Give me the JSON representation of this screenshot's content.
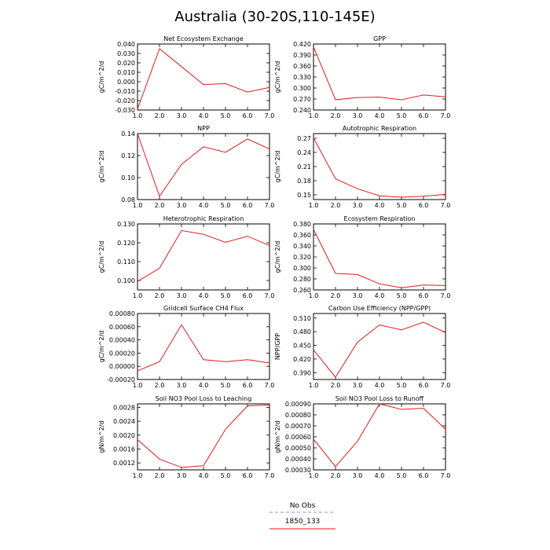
{
  "title": "Australia (30-20S,110-145E)",
  "legend": {
    "entries": [
      {
        "label": "No Obs",
        "color": "#8c8cf0",
        "dashed": true
      },
      {
        "label": "1850_133",
        "color": "#e41a1c",
        "dashed": false
      }
    ]
  },
  "chart_data": [
    {
      "type": "line",
      "title": "Net Ecosystem Exchange",
      "ylabel": "gC/m^2/d",
      "x": [
        1,
        2,
        3,
        4,
        5,
        6,
        7
      ],
      "xticks": [
        "1.0",
        "2.0",
        "3.0",
        "4.0",
        "5.0",
        "6.0",
        "7.0"
      ],
      "xlim": [
        1,
        7
      ],
      "ylim": [
        -0.03,
        0.04
      ],
      "yticks": [
        -0.03,
        -0.02,
        -0.01,
        0.0,
        0.01,
        0.02,
        0.03,
        0.04
      ],
      "yticklabels": [
        "-0.030",
        "-0.020",
        "-0.010",
        "0.000",
        "0.010",
        "0.020",
        "0.030",
        "0.040"
      ],
      "series": [
        {
          "values": [
            -0.029,
            0.035,
            0.016,
            -0.003,
            -0.002,
            -0.011,
            -0.006
          ]
        }
      ]
    },
    {
      "type": "line",
      "title": "GPP",
      "ylabel": "gC/m^2/d",
      "x": [
        1,
        2,
        3,
        4,
        5,
        6,
        7
      ],
      "xticks": [
        "1.0",
        "2.0",
        "3.0",
        "4.0",
        "5.0",
        "6.0",
        "7.0"
      ],
      "xlim": [
        1,
        7
      ],
      "ylim": [
        0.24,
        0.42
      ],
      "yticks": [
        0.24,
        0.27,
        0.3,
        0.33,
        0.36,
        0.39,
        0.42
      ],
      "yticklabels": [
        "0.240",
        "0.270",
        "0.300",
        "0.330",
        "0.360",
        "0.390",
        "0.420"
      ],
      "series": [
        {
          "values": [
            0.412,
            0.268,
            0.274,
            0.275,
            0.268,
            0.281,
            0.276
          ]
        }
      ]
    },
    {
      "type": "line",
      "title": "NPP",
      "ylabel": "gC/m^2/d",
      "x": [
        1,
        2,
        3,
        4,
        5,
        6,
        7
      ],
      "xticks": [
        "1.0",
        "2.0",
        "3.0",
        "4.0",
        "5.0",
        "6.0",
        "7.0"
      ],
      "xlim": [
        1,
        7
      ],
      "ylim": [
        0.08,
        0.14
      ],
      "yticks": [
        0.08,
        0.1,
        0.12,
        0.14
      ],
      "yticklabels": [
        "0.08",
        "0.10",
        "0.12",
        "0.14"
      ],
      "series": [
        {
          "values": [
            0.14,
            0.083,
            0.112,
            0.128,
            0.123,
            0.135,
            0.126
          ]
        }
      ]
    },
    {
      "type": "line",
      "title": "Autotrophic Respiration",
      "ylabel": "gC/m^2/d",
      "x": [
        1,
        2,
        3,
        4,
        5,
        6,
        7
      ],
      "xticks": [
        "1.0",
        "2.0",
        "3.0",
        "4.0",
        "5.0",
        "6.0",
        "7.0"
      ],
      "xlim": [
        1,
        7
      ],
      "ylim": [
        0.14,
        0.28
      ],
      "yticks": [
        0.15,
        0.18,
        0.21,
        0.24,
        0.27
      ],
      "yticklabels": [
        "0.15",
        "0.18",
        "0.21",
        "0.24",
        "0.27"
      ],
      "series": [
        {
          "values": [
            0.271,
            0.184,
            0.163,
            0.148,
            0.145,
            0.147,
            0.151
          ]
        }
      ]
    },
    {
      "type": "line",
      "title": "Heterotrophic Respiration",
      "ylabel": "gC/m^2/d",
      "x": [
        1,
        2,
        3,
        4,
        5,
        6,
        7
      ],
      "xticks": [
        "1.0",
        "2.0",
        "3.0",
        "4.0",
        "5.0",
        "6.0",
        "7.0"
      ],
      "xlim": [
        1,
        7
      ],
      "ylim": [
        0.095,
        0.13
      ],
      "yticks": [
        0.1,
        0.11,
        0.12,
        0.13
      ],
      "yticklabels": [
        "0.100",
        "0.110",
        "0.120",
        "0.130"
      ],
      "series": [
        {
          "values": [
            0.0995,
            0.1065,
            0.1265,
            0.1245,
            0.1202,
            0.1235,
            0.1185
          ]
        }
      ]
    },
    {
      "type": "line",
      "title": "Ecosystem Respiration",
      "ylabel": "gC/m^2/d",
      "x": [
        1,
        2,
        3,
        4,
        5,
        6,
        7
      ],
      "xticks": [
        "1.0",
        "2.0",
        "3.0",
        "4.0",
        "5.0",
        "6.0",
        "7.0"
      ],
      "xlim": [
        1,
        7
      ],
      "ylim": [
        0.26,
        0.38
      ],
      "yticks": [
        0.26,
        0.28,
        0.3,
        0.32,
        0.34,
        0.36,
        0.38
      ],
      "yticklabels": [
        "0.260",
        "0.280",
        "0.300",
        "0.320",
        "0.340",
        "0.360",
        "0.380"
      ],
      "series": [
        {
          "values": [
            0.37,
            0.29,
            0.288,
            0.271,
            0.264,
            0.269,
            0.268
          ]
        }
      ]
    },
    {
      "type": "line",
      "title": "Gridcell Surface CH4 Flux",
      "ylabel": "gC/m^2/d",
      "x": [
        1,
        2,
        3,
        4,
        5,
        6,
        7
      ],
      "xticks": [
        "1.0",
        "2.0",
        "3.0",
        "4.0",
        "5.0",
        "6.0",
        "7.0"
      ],
      "xlim": [
        1,
        7
      ],
      "ylim": [
        -0.0002,
        0.0008
      ],
      "yticks": [
        -0.0002,
        0.0,
        0.0002,
        0.0004,
        0.0006,
        0.0008
      ],
      "yticklabels": [
        "-0.00020",
        "0.00000",
        "0.00020",
        "0.00040",
        "0.00060",
        "0.00080"
      ],
      "series": [
        {
          "values": [
            -7e-05,
            7e-05,
            0.00063,
            0.0001,
            7e-05,
            0.0001,
            5e-05
          ]
        }
      ]
    },
    {
      "type": "line",
      "title": "Carbon Use Efficiency (NPP/GPP)",
      "ylabel": "NPP/GPP",
      "x": [
        1,
        2,
        3,
        4,
        5,
        6,
        7
      ],
      "xticks": [
        "1.0",
        "2.0",
        "3.0",
        "4.0",
        "5.0",
        "6.0",
        "7.0"
      ],
      "xlim": [
        1,
        7
      ],
      "ylim": [
        0.375,
        0.52
      ],
      "yticks": [
        0.39,
        0.42,
        0.45,
        0.48,
        0.51
      ],
      "yticklabels": [
        "0.390",
        "0.420",
        "0.450",
        "0.480",
        "0.510"
      ],
      "series": [
        {
          "values": [
            0.44,
            0.38,
            0.457,
            0.495,
            0.484,
            0.501,
            0.478
          ]
        }
      ]
    },
    {
      "type": "line",
      "title": "Soil NO3 Pool Loss to Leaching",
      "ylabel": "gN/m^2/d",
      "x": [
        1,
        2,
        3,
        4,
        5,
        6,
        7
      ],
      "xticks": [
        "1.0",
        "2.0",
        "3.0",
        "4.0",
        "5.0",
        "6.0",
        "7.0"
      ],
      "xlim": [
        1,
        7
      ],
      "ylim": [
        0.001,
        0.0029
      ],
      "yticks": [
        0.0012,
        0.0016,
        0.002,
        0.0024,
        0.0028
      ],
      "yticklabels": [
        "0.0012",
        "0.0016",
        "0.0020",
        "0.0024",
        "0.0028"
      ],
      "series": [
        {
          "values": [
            0.00187,
            0.00131,
            0.00107,
            0.00112,
            0.00217,
            0.00284,
            0.00287
          ]
        }
      ]
    },
    {
      "type": "line",
      "title": "Soil NO3 Pool Loss to Runoff",
      "ylabel": "gN/m^2/d",
      "x": [
        1,
        2,
        3,
        4,
        5,
        6,
        7
      ],
      "xticks": [
        "1.0",
        "2.0",
        "3.0",
        "4.0",
        "5.0",
        "6.0",
        "7.0"
      ],
      "xlim": [
        1,
        7
      ],
      "ylim": [
        0.0003,
        0.0009
      ],
      "yticks": [
        0.0003,
        0.0004,
        0.0005,
        0.0006,
        0.0007,
        0.0008,
        0.0009
      ],
      "yticklabels": [
        "0.00030",
        "0.00040",
        "0.00050",
        "0.00060",
        "0.00070",
        "0.00080",
        "0.00090"
      ],
      "series": [
        {
          "values": [
            0.00058,
            0.00033,
            0.00056,
            0.0009,
            0.00085,
            0.00086,
            0.00067
          ]
        }
      ]
    }
  ]
}
